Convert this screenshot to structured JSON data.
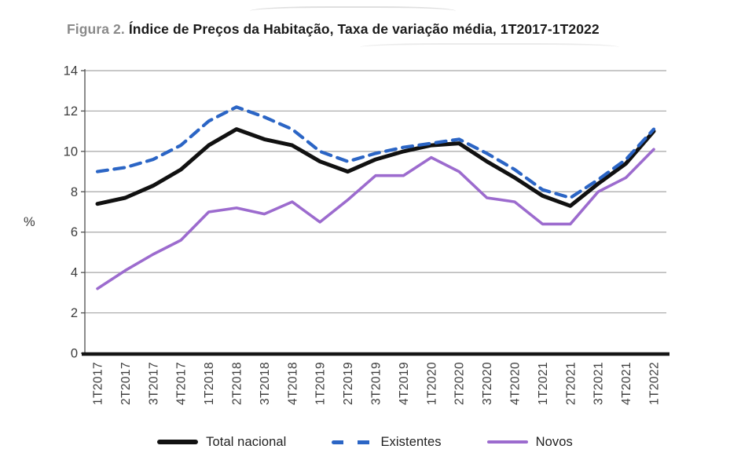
{
  "figure": {
    "title_prefix": "Figura 2.",
    "title": "Índice de Preços da Habitação, Taxa de variação média, 1T2017-1T2022"
  },
  "chart_data": {
    "type": "line",
    "title": "Índice de Preços da Habitação, Taxa de variação média, 1T2017-1T2022",
    "xlabel": "",
    "ylabel": "%",
    "ylim": [
      0,
      14
    ],
    "yticks": [
      0,
      2,
      4,
      6,
      8,
      10,
      12,
      14
    ],
    "grid": "horizontal",
    "legend_position": "bottom",
    "categories": [
      "1T2017",
      "2T2017",
      "3T2017",
      "4T2017",
      "1T2018",
      "2T2018",
      "3T2018",
      "4T2018",
      "1T2019",
      "2T2019",
      "3T2019",
      "4T2019",
      "1T2020",
      "2T2020",
      "3T2020",
      "4T2020",
      "1T2021",
      "2T2021",
      "3T2021",
      "4T2021",
      "1T2022"
    ],
    "series": [
      {
        "name": "Total nacional",
        "color": "#111111",
        "style": "solid",
        "values": [
          7.4,
          7.7,
          8.3,
          9.1,
          10.3,
          11.1,
          10.6,
          10.3,
          9.5,
          9.0,
          9.6,
          10.0,
          10.3,
          10.4,
          9.5,
          8.7,
          7.8,
          7.3,
          8.4,
          9.4,
          11.0
        ]
      },
      {
        "name": "Existentes",
        "color": "#2b65c5",
        "style": "dashed",
        "values": [
          9.0,
          9.2,
          9.6,
          10.3,
          11.5,
          12.2,
          11.7,
          11.1,
          10.0,
          9.5,
          9.9,
          10.2,
          10.4,
          10.6,
          9.9,
          9.1,
          8.1,
          7.7,
          8.6,
          9.6,
          11.1
        ]
      },
      {
        "name": "Novos",
        "color": "#9c6bce",
        "style": "solid",
        "values": [
          3.2,
          4.1,
          4.9,
          5.6,
          7.0,
          7.2,
          6.9,
          7.5,
          6.5,
          7.6,
          8.8,
          8.8,
          9.7,
          9.0,
          7.7,
          7.5,
          6.4,
          6.4,
          8.0,
          8.7,
          10.1
        ]
      }
    ]
  }
}
